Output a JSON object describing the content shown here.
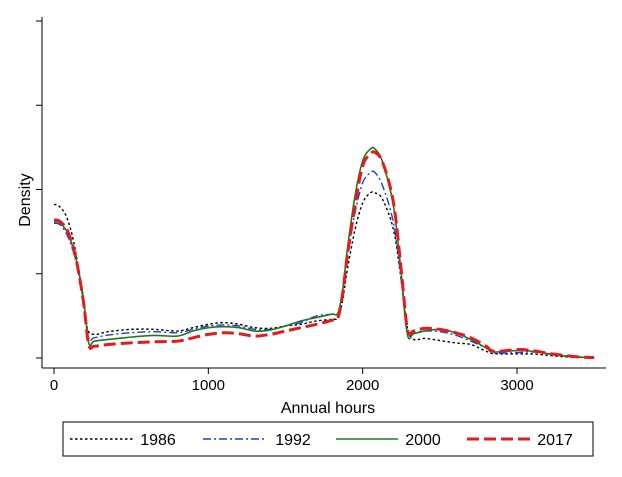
{
  "chart_data": {
    "type": "line",
    "title": "",
    "xlabel": "Annual hours",
    "ylabel": "Density",
    "xlim": [
      -20,
      3560
    ],
    "ylim": [
      0,
      1.0
    ],
    "x_ticks": [
      0,
      1000,
      2000,
      3000
    ],
    "x_tick_labels": [
      "0",
      "1000",
      "2000",
      "3000"
    ],
    "y_ticks": [
      0,
      0.25,
      0.5,
      0.75,
      1.0
    ],
    "y_tick_labels": [
      "",
      "",
      "",
      "",
      ""
    ],
    "grid": false,
    "legend_position": "bottom",
    "series": [
      {
        "name": "1986",
        "color": "#000000",
        "dash": "dotted",
        "points": [
          [
            0,
            0.455
          ],
          [
            30,
            0.452
          ],
          [
            80,
            0.42
          ],
          [
            130,
            0.34
          ],
          [
            180,
            0.2
          ],
          [
            215,
            0.09
          ],
          [
            260,
            0.07
          ],
          [
            350,
            0.078
          ],
          [
            500,
            0.085
          ],
          [
            650,
            0.085
          ],
          [
            800,
            0.08
          ],
          [
            900,
            0.09
          ],
          [
            1000,
            0.1
          ],
          [
            1100,
            0.105
          ],
          [
            1200,
            0.1
          ],
          [
            1300,
            0.09
          ],
          [
            1400,
            0.088
          ],
          [
            1500,
            0.095
          ],
          [
            1600,
            0.1
          ],
          [
            1700,
            0.11
          ],
          [
            1800,
            0.115
          ],
          [
            1840,
            0.12
          ],
          [
            1870,
            0.17
          ],
          [
            1900,
            0.26
          ],
          [
            1950,
            0.38
          ],
          [
            2000,
            0.46
          ],
          [
            2050,
            0.49
          ],
          [
            2080,
            0.49
          ],
          [
            2130,
            0.47
          ],
          [
            2200,
            0.38
          ],
          [
            2250,
            0.23
          ],
          [
            2290,
            0.09
          ],
          [
            2330,
            0.055
          ],
          [
            2400,
            0.058
          ],
          [
            2500,
            0.052
          ],
          [
            2600,
            0.045
          ],
          [
            2700,
            0.04
          ],
          [
            2800,
            0.02
          ],
          [
            2850,
            0.013
          ],
          [
            3000,
            0.012
          ],
          [
            3100,
            0.012
          ],
          [
            3200,
            0.008
          ],
          [
            3300,
            0.004
          ],
          [
            3400,
            0.002
          ],
          [
            3500,
            0.001
          ]
        ]
      },
      {
        "name": "1992",
        "color": "#1f3dd4",
        "dash": "dashdot",
        "points": [
          [
            0,
            0.4
          ],
          [
            40,
            0.395
          ],
          [
            90,
            0.36
          ],
          [
            140,
            0.29
          ],
          [
            190,
            0.17
          ],
          [
            225,
            0.06
          ],
          [
            260,
            0.06
          ],
          [
            350,
            0.068
          ],
          [
            500,
            0.075
          ],
          [
            650,
            0.078
          ],
          [
            800,
            0.075
          ],
          [
            900,
            0.085
          ],
          [
            1000,
            0.095
          ],
          [
            1100,
            0.098
          ],
          [
            1200,
            0.095
          ],
          [
            1300,
            0.085
          ],
          [
            1400,
            0.085
          ],
          [
            1500,
            0.095
          ],
          [
            1600,
            0.105
          ],
          [
            1700,
            0.125
          ],
          [
            1800,
            0.13
          ],
          [
            1840,
            0.135
          ],
          [
            1870,
            0.2
          ],
          [
            1900,
            0.3
          ],
          [
            1950,
            0.43
          ],
          [
            2000,
            0.52
          ],
          [
            2050,
            0.55
          ],
          [
            2080,
            0.55
          ],
          [
            2130,
            0.51
          ],
          [
            2200,
            0.4
          ],
          [
            2250,
            0.23
          ],
          [
            2290,
            0.07
          ],
          [
            2330,
            0.075
          ],
          [
            2400,
            0.08
          ],
          [
            2500,
            0.078
          ],
          [
            2600,
            0.068
          ],
          [
            2700,
            0.05
          ],
          [
            2800,
            0.03
          ],
          [
            2850,
            0.015
          ],
          [
            3000,
            0.016
          ],
          [
            3100,
            0.018
          ],
          [
            3200,
            0.012
          ],
          [
            3300,
            0.006
          ],
          [
            3400,
            0.003
          ],
          [
            3500,
            0.001
          ]
        ]
      },
      {
        "name": "2000",
        "color": "#1e7a1e",
        "dash": "solid",
        "points": [
          [
            0,
            0.405
          ],
          [
            40,
            0.4
          ],
          [
            90,
            0.37
          ],
          [
            140,
            0.3
          ],
          [
            190,
            0.18
          ],
          [
            225,
            0.045
          ],
          [
            260,
            0.05
          ],
          [
            350,
            0.055
          ],
          [
            500,
            0.062
          ],
          [
            650,
            0.067
          ],
          [
            800,
            0.065
          ],
          [
            900,
            0.08
          ],
          [
            1000,
            0.09
          ],
          [
            1100,
            0.093
          ],
          [
            1200,
            0.09
          ],
          [
            1300,
            0.08
          ],
          [
            1400,
            0.083
          ],
          [
            1500,
            0.095
          ],
          [
            1600,
            0.11
          ],
          [
            1700,
            0.12
          ],
          [
            1800,
            0.13
          ],
          [
            1840,
            0.133
          ],
          [
            1870,
            0.2
          ],
          [
            1900,
            0.32
          ],
          [
            1950,
            0.48
          ],
          [
            2000,
            0.585
          ],
          [
            2050,
            0.62
          ],
          [
            2080,
            0.62
          ],
          [
            2130,
            0.58
          ],
          [
            2200,
            0.45
          ],
          [
            2250,
            0.25
          ],
          [
            2290,
            0.07
          ],
          [
            2330,
            0.072
          ],
          [
            2400,
            0.08
          ],
          [
            2500,
            0.085
          ],
          [
            2600,
            0.075
          ],
          [
            2700,
            0.055
          ],
          [
            2800,
            0.03
          ],
          [
            2850,
            0.018
          ],
          [
            3000,
            0.022
          ],
          [
            3100,
            0.02
          ],
          [
            3200,
            0.013
          ],
          [
            3300,
            0.007
          ],
          [
            3400,
            0.003
          ],
          [
            3500,
            0.001
          ]
        ]
      },
      {
        "name": "2017",
        "color": "#e41a1c",
        "dash": "dashed",
        "points": [
          [
            0,
            0.41
          ],
          [
            40,
            0.405
          ],
          [
            90,
            0.375
          ],
          [
            140,
            0.3
          ],
          [
            190,
            0.17
          ],
          [
            225,
            0.04
          ],
          [
            260,
            0.035
          ],
          [
            350,
            0.04
          ],
          [
            500,
            0.045
          ],
          [
            650,
            0.048
          ],
          [
            800,
            0.05
          ],
          [
            900,
            0.06
          ],
          [
            1000,
            0.07
          ],
          [
            1100,
            0.075
          ],
          [
            1200,
            0.072
          ],
          [
            1300,
            0.065
          ],
          [
            1400,
            0.07
          ],
          [
            1500,
            0.08
          ],
          [
            1600,
            0.09
          ],
          [
            1700,
            0.1
          ],
          [
            1800,
            0.112
          ],
          [
            1840,
            0.12
          ],
          [
            1870,
            0.19
          ],
          [
            1900,
            0.3
          ],
          [
            1950,
            0.45
          ],
          [
            2000,
            0.57
          ],
          [
            2050,
            0.605
          ],
          [
            2080,
            0.61
          ],
          [
            2130,
            0.58
          ],
          [
            2200,
            0.46
          ],
          [
            2250,
            0.26
          ],
          [
            2290,
            0.085
          ],
          [
            2330,
            0.08
          ],
          [
            2400,
            0.088
          ],
          [
            2500,
            0.085
          ],
          [
            2600,
            0.075
          ],
          [
            2700,
            0.06
          ],
          [
            2800,
            0.035
          ],
          [
            2850,
            0.02
          ],
          [
            3000,
            0.025
          ],
          [
            3100,
            0.022
          ],
          [
            3200,
            0.014
          ],
          [
            3300,
            0.008
          ],
          [
            3400,
            0.003
          ],
          [
            3500,
            0.001
          ]
        ]
      }
    ]
  }
}
